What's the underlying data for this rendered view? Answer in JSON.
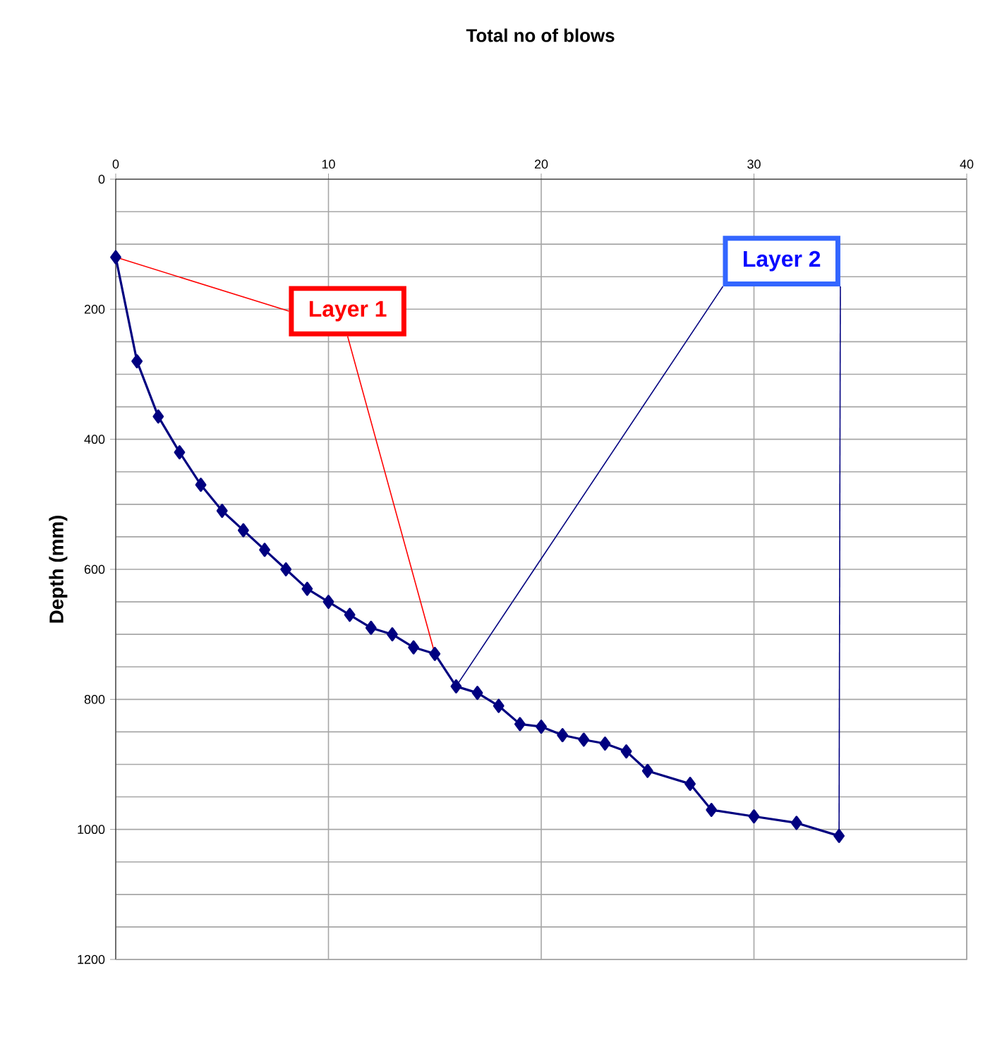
{
  "chart_data": {
    "type": "line",
    "title": "Total no of blows",
    "ylabel": "Depth (mm)",
    "x": [
      0,
      1,
      2,
      3,
      4,
      5,
      6,
      7,
      8,
      9,
      10,
      11,
      12,
      13,
      14,
      15,
      16,
      17,
      18,
      19,
      20,
      21,
      22,
      23,
      24,
      25,
      27,
      28,
      30,
      32,
      34
    ],
    "series": [
      {
        "color": "#000080",
        "values": [
          120,
          280,
          365,
          420,
          470,
          510,
          540,
          570,
          600,
          630,
          650,
          670,
          690,
          700,
          720,
          730,
          780,
          790,
          810,
          838,
          842,
          855,
          862,
          868,
          880,
          910,
          930,
          970,
          980,
          990,
          1010
        ]
      }
    ],
    "xlim": [
      0,
      40
    ],
    "xticks": [
      0,
      10,
      20,
      30,
      40
    ],
    "ylim": [
      1200,
      0
    ],
    "yticks": [
      0,
      200,
      400,
      600,
      800,
      1000,
      1200
    ],
    "grid": true,
    "marker": "diamond",
    "line_style": "solid",
    "annotations": [
      {
        "text": "Layer 1",
        "x": 15,
        "y": 730
      },
      {
        "text": "Layer 2",
        "x": 34,
        "y": 1010
      }
    ]
  }
}
